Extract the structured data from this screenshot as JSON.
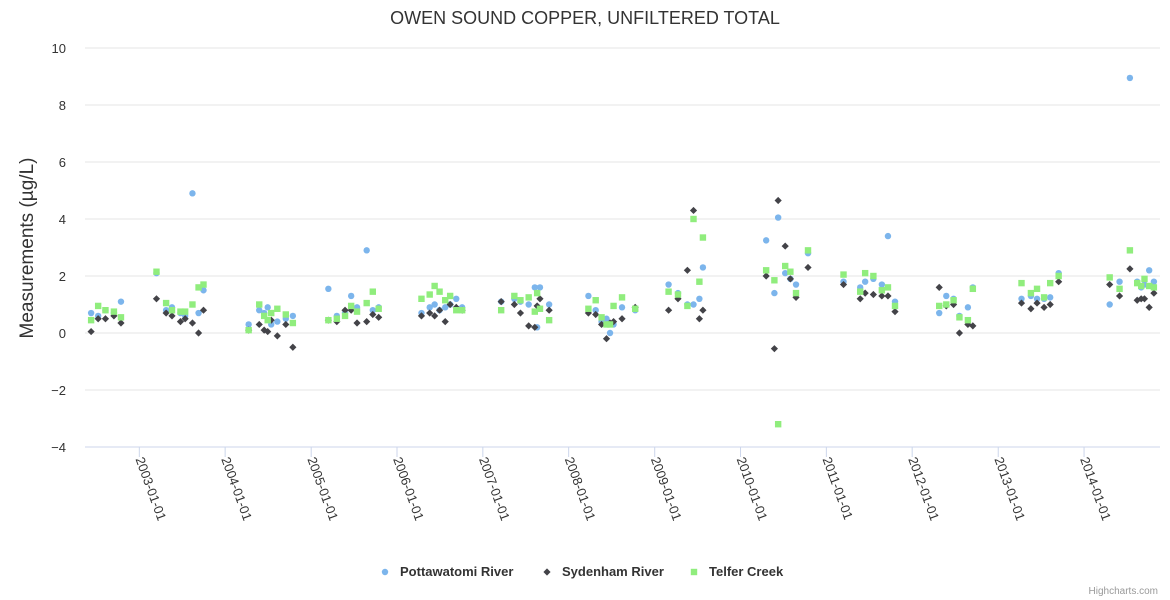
{
  "chart_data": {
    "type": "scatter",
    "title": "OWEN SOUND COPPER, UNFILTERED TOTAL",
    "ylabel": "Measurements (µg/L)",
    "xlabel": "",
    "ylim": [
      -4,
      10
    ],
    "yticks": [
      -4,
      -2,
      0,
      2,
      4,
      6,
      8,
      10
    ],
    "xlim": [
      "2002-05-15",
      "2014-11-20"
    ],
    "xticks": [
      "2003-01-01",
      "2004-01-01",
      "2005-01-01",
      "2006-01-01",
      "2007-01-01",
      "2008-01-01",
      "2009-01-01",
      "2010-01-01",
      "2011-01-01",
      "2012-01-01",
      "2013-01-01",
      "2014-01-01"
    ],
    "grid": true,
    "legend_position": "bottom-center",
    "credits": "Highcharts.com",
    "series": [
      {
        "name": "Pottawatomi River",
        "color": "#7cb5ec",
        "marker": "circle",
        "points": [
          [
            "2002-06-10",
            0.7
          ],
          [
            "2002-07-10",
            0.6
          ],
          [
            "2002-08-10",
            0.8
          ],
          [
            "2002-09-15",
            0.7
          ],
          [
            "2002-10-15",
            1.1
          ],
          [
            "2003-03-15",
            2.1
          ],
          [
            "2003-04-25",
            0.8
          ],
          [
            "2003-05-20",
            0.9
          ],
          [
            "2003-06-25",
            0.7
          ],
          [
            "2003-07-15",
            0.6
          ],
          [
            "2003-08-15",
            4.9
          ],
          [
            "2003-09-10",
            0.7
          ],
          [
            "2003-10-01",
            1.5
          ],
          [
            "2004-04-10",
            0.3
          ],
          [
            "2004-05-25",
            0.8
          ],
          [
            "2004-06-15",
            0.7
          ],
          [
            "2004-06-30",
            0.9
          ],
          [
            "2004-07-15",
            0.3
          ],
          [
            "2004-08-10",
            0.4
          ],
          [
            "2004-09-15",
            0.5
          ],
          [
            "2004-10-15",
            0.6
          ],
          [
            "2005-03-15",
            1.55
          ],
          [
            "2005-04-20",
            0.6
          ],
          [
            "2005-05-25",
            0.7
          ],
          [
            "2005-06-20",
            1.3
          ],
          [
            "2005-07-15",
            0.9
          ],
          [
            "2005-08-25",
            2.9
          ],
          [
            "2005-09-20",
            0.8
          ],
          [
            "2005-10-15",
            0.9
          ],
          [
            "2006-04-15",
            0.7
          ],
          [
            "2006-05-20",
            0.9
          ],
          [
            "2006-06-10",
            1.0
          ],
          [
            "2006-07-01",
            0.8
          ],
          [
            "2006-07-25",
            0.9
          ],
          [
            "2006-08-15",
            1.0
          ],
          [
            "2006-09-10",
            1.2
          ],
          [
            "2006-10-05",
            0.9
          ],
          [
            "2007-03-20",
            1.1
          ],
          [
            "2007-05-15",
            1.2
          ],
          [
            "2007-06-10",
            1.1
          ],
          [
            "2007-07-15",
            1.0
          ],
          [
            "2007-08-10",
            1.6
          ],
          [
            "2007-08-20",
            0.2
          ],
          [
            "2007-09-01",
            1.6
          ],
          [
            "2007-10-10",
            1.0
          ],
          [
            "2008-03-25",
            1.3
          ],
          [
            "2008-04-25",
            0.8
          ],
          [
            "2008-05-20",
            0.4
          ],
          [
            "2008-06-10",
            0.5
          ],
          [
            "2008-06-25",
            0.0
          ],
          [
            "2008-07-10",
            0.3
          ],
          [
            "2008-08-15",
            0.9
          ],
          [
            "2008-10-10",
            0.8
          ],
          [
            "2009-03-01",
            1.7
          ],
          [
            "2009-04-10",
            1.4
          ],
          [
            "2009-05-20",
            1.0
          ],
          [
            "2009-06-15",
            1.0
          ],
          [
            "2009-07-10",
            1.2
          ],
          [
            "2009-07-25",
            2.3
          ],
          [
            "2010-04-20",
            3.25
          ],
          [
            "2010-05-25",
            1.4
          ],
          [
            "2010-06-10",
            4.05
          ],
          [
            "2010-07-10",
            2.1
          ],
          [
            "2010-08-01",
            1.9
          ],
          [
            "2010-08-25",
            1.7
          ],
          [
            "2010-10-15",
            2.8
          ],
          [
            "2011-03-15",
            1.8
          ],
          [
            "2011-05-25",
            1.6
          ],
          [
            "2011-06-15",
            1.8
          ],
          [
            "2011-07-20",
            1.9
          ],
          [
            "2011-08-25",
            1.7
          ],
          [
            "2011-09-20",
            3.4
          ],
          [
            "2011-10-20",
            1.1
          ],
          [
            "2012-04-25",
            0.7
          ],
          [
            "2012-05-25",
            1.3
          ],
          [
            "2012-06-25",
            1.2
          ],
          [
            "2012-07-20",
            0.6
          ],
          [
            "2012-08-25",
            0.9
          ],
          [
            "2012-09-15",
            1.6
          ],
          [
            "2013-04-10",
            1.2
          ],
          [
            "2013-05-20",
            1.3
          ],
          [
            "2013-06-15",
            1.2
          ],
          [
            "2013-07-15",
            1.2
          ],
          [
            "2013-08-10",
            1.25
          ],
          [
            "2013-09-15",
            2.1
          ],
          [
            "2014-04-20",
            1.0
          ],
          [
            "2014-06-01",
            1.8
          ],
          [
            "2014-07-15",
            8.95
          ],
          [
            "2014-08-15",
            1.8
          ],
          [
            "2014-09-01",
            1.6
          ],
          [
            "2014-09-15",
            1.7
          ],
          [
            "2014-10-05",
            2.2
          ],
          [
            "2014-10-25",
            1.8
          ]
        ]
      },
      {
        "name": "Sydenham River",
        "color": "#434348",
        "marker": "diamond",
        "points": [
          [
            "2002-06-10",
            0.05
          ],
          [
            "2002-07-10",
            0.5
          ],
          [
            "2002-08-10",
            0.5
          ],
          [
            "2002-09-15",
            0.6
          ],
          [
            "2002-10-15",
            0.35
          ],
          [
            "2003-03-15",
            1.2
          ],
          [
            "2003-04-25",
            0.7
          ],
          [
            "2003-05-20",
            0.6
          ],
          [
            "2003-06-25",
            0.4
          ],
          [
            "2003-07-15",
            0.5
          ],
          [
            "2003-08-15",
            0.35
          ],
          [
            "2003-09-10",
            0.0
          ],
          [
            "2003-10-01",
            0.8
          ],
          [
            "2004-04-10",
            0.1
          ],
          [
            "2004-05-25",
            0.3
          ],
          [
            "2004-06-15",
            0.1
          ],
          [
            "2004-06-30",
            0.05
          ],
          [
            "2004-07-15",
            0.45
          ],
          [
            "2004-08-10",
            -0.1
          ],
          [
            "2004-09-15",
            0.3
          ],
          [
            "2004-10-15",
            -0.5
          ],
          [
            "2005-03-15",
            0.45
          ],
          [
            "2005-04-20",
            0.4
          ],
          [
            "2005-05-25",
            0.8
          ],
          [
            "2005-06-20",
            0.8
          ],
          [
            "2005-07-15",
            0.35
          ],
          [
            "2005-08-25",
            0.4
          ],
          [
            "2005-09-20",
            0.65
          ],
          [
            "2005-10-15",
            0.55
          ],
          [
            "2006-04-15",
            0.6
          ],
          [
            "2006-05-20",
            0.7
          ],
          [
            "2006-06-10",
            0.6
          ],
          [
            "2006-07-01",
            0.8
          ],
          [
            "2006-07-25",
            0.4
          ],
          [
            "2006-08-15",
            1.0
          ],
          [
            "2006-09-10",
            0.9
          ],
          [
            "2006-10-05",
            0.8
          ],
          [
            "2007-03-20",
            1.1
          ],
          [
            "2007-05-15",
            1.0
          ],
          [
            "2007-06-10",
            0.7
          ],
          [
            "2007-07-15",
            0.25
          ],
          [
            "2007-08-10",
            0.2
          ],
          [
            "2007-08-20",
            0.95
          ],
          [
            "2007-09-01",
            1.2
          ],
          [
            "2007-10-10",
            0.8
          ],
          [
            "2008-03-25",
            0.7
          ],
          [
            "2008-04-25",
            0.65
          ],
          [
            "2008-05-20",
            0.3
          ],
          [
            "2008-06-10",
            -0.2
          ],
          [
            "2008-06-25",
            0.35
          ],
          [
            "2008-07-10",
            0.4
          ],
          [
            "2008-08-15",
            0.5
          ],
          [
            "2008-10-10",
            0.9
          ],
          [
            "2009-03-01",
            0.8
          ],
          [
            "2009-04-10",
            1.2
          ],
          [
            "2009-05-20",
            2.2
          ],
          [
            "2009-06-15",
            4.3
          ],
          [
            "2009-07-10",
            0.5
          ],
          [
            "2009-07-25",
            0.8
          ],
          [
            "2010-04-20",
            2.0
          ],
          [
            "2010-05-25",
            -0.55
          ],
          [
            "2010-06-10",
            4.65
          ],
          [
            "2010-07-10",
            3.05
          ],
          [
            "2010-08-01",
            1.9
          ],
          [
            "2010-08-25",
            1.25
          ],
          [
            "2010-10-15",
            2.3
          ],
          [
            "2011-03-15",
            1.7
          ],
          [
            "2011-05-25",
            1.2
          ],
          [
            "2011-06-15",
            1.4
          ],
          [
            "2011-07-20",
            1.35
          ],
          [
            "2011-08-25",
            1.3
          ],
          [
            "2011-09-20",
            1.3
          ],
          [
            "2011-10-20",
            0.75
          ],
          [
            "2012-04-25",
            1.6
          ],
          [
            "2012-05-25",
            0.95
          ],
          [
            "2012-06-25",
            1.0
          ],
          [
            "2012-07-20",
            0.0
          ],
          [
            "2012-08-25",
            0.3
          ],
          [
            "2012-09-15",
            0.25
          ],
          [
            "2013-04-10",
            1.05
          ],
          [
            "2013-05-20",
            0.85
          ],
          [
            "2013-06-15",
            1.05
          ],
          [
            "2013-07-15",
            0.9
          ],
          [
            "2013-08-10",
            1.0
          ],
          [
            "2013-09-15",
            1.8
          ],
          [
            "2014-04-20",
            1.7
          ],
          [
            "2014-06-01",
            1.3
          ],
          [
            "2014-07-15",
            2.25
          ],
          [
            "2014-08-15",
            1.15
          ],
          [
            "2014-09-01",
            1.2
          ],
          [
            "2014-09-15",
            1.2
          ],
          [
            "2014-10-05",
            0.9
          ],
          [
            "2014-10-25",
            1.4
          ]
        ]
      },
      {
        "name": "Telfer Creek",
        "color": "#90ed7d",
        "marker": "square",
        "points": [
          [
            "2002-06-10",
            0.45
          ],
          [
            "2002-07-10",
            0.95
          ],
          [
            "2002-08-10",
            0.8
          ],
          [
            "2002-09-15",
            0.75
          ],
          [
            "2002-10-15",
            0.55
          ],
          [
            "2003-03-15",
            2.15
          ],
          [
            "2003-04-25",
            1.05
          ],
          [
            "2003-05-20",
            0.8
          ],
          [
            "2003-06-25",
            0.75
          ],
          [
            "2003-07-15",
            0.75
          ],
          [
            "2003-08-15",
            1.0
          ],
          [
            "2003-09-10",
            1.6
          ],
          [
            "2003-10-01",
            1.7
          ],
          [
            "2004-04-10",
            0.1
          ],
          [
            "2004-05-25",
            1.0
          ],
          [
            "2004-06-15",
            0.6
          ],
          [
            "2004-06-30",
            0.45
          ],
          [
            "2004-07-15",
            0.7
          ],
          [
            "2004-08-10",
            0.85
          ],
          [
            "2004-09-15",
            0.65
          ],
          [
            "2004-10-15",
            0.35
          ],
          [
            "2005-03-15",
            0.45
          ],
          [
            "2005-04-20",
            0.5
          ],
          [
            "2005-05-25",
            0.6
          ],
          [
            "2005-06-20",
            0.95
          ],
          [
            "2005-07-15",
            0.75
          ],
          [
            "2005-08-25",
            1.05
          ],
          [
            "2005-09-20",
            1.45
          ],
          [
            "2005-10-15",
            0.85
          ],
          [
            "2006-04-15",
            1.2
          ],
          [
            "2006-05-20",
            1.35
          ],
          [
            "2006-06-10",
            1.65
          ],
          [
            "2006-07-01",
            1.45
          ],
          [
            "2006-07-25",
            1.15
          ],
          [
            "2006-08-15",
            1.3
          ],
          [
            "2006-09-10",
            0.8
          ],
          [
            "2006-10-05",
            0.8
          ],
          [
            "2007-03-20",
            0.8
          ],
          [
            "2007-05-15",
            1.3
          ],
          [
            "2007-06-10",
            1.15
          ],
          [
            "2007-07-15",
            1.25
          ],
          [
            "2007-08-10",
            0.75
          ],
          [
            "2007-08-20",
            1.4
          ],
          [
            "2007-09-01",
            0.85
          ],
          [
            "2007-10-10",
            0.45
          ],
          [
            "2008-03-25",
            0.85
          ],
          [
            "2008-04-25",
            1.15
          ],
          [
            "2008-05-20",
            0.55
          ],
          [
            "2008-06-10",
            0.3
          ],
          [
            "2008-06-25",
            0.3
          ],
          [
            "2008-07-10",
            0.95
          ],
          [
            "2008-08-15",
            1.25
          ],
          [
            "2008-10-10",
            0.85
          ],
          [
            "2009-03-01",
            1.45
          ],
          [
            "2009-04-10",
            1.35
          ],
          [
            "2009-05-20",
            0.95
          ],
          [
            "2009-06-15",
            4.0
          ],
          [
            "2009-07-10",
            1.8
          ],
          [
            "2009-07-25",
            3.35
          ],
          [
            "2010-04-20",
            2.2
          ],
          [
            "2010-05-25",
            1.85
          ],
          [
            "2010-06-10",
            -3.2
          ],
          [
            "2010-07-10",
            2.35
          ],
          [
            "2010-08-01",
            2.15
          ],
          [
            "2010-08-25",
            1.4
          ],
          [
            "2010-10-15",
            2.9
          ],
          [
            "2011-03-15",
            2.05
          ],
          [
            "2011-05-25",
            1.45
          ],
          [
            "2011-06-15",
            2.1
          ],
          [
            "2011-07-20",
            2.0
          ],
          [
            "2011-08-25",
            1.5
          ],
          [
            "2011-09-20",
            1.6
          ],
          [
            "2011-10-20",
            0.95
          ],
          [
            "2012-04-25",
            0.95
          ],
          [
            "2012-05-25",
            1.0
          ],
          [
            "2012-06-25",
            1.15
          ],
          [
            "2012-07-20",
            0.55
          ],
          [
            "2012-08-25",
            0.45
          ],
          [
            "2012-09-15",
            1.55
          ],
          [
            "2013-04-10",
            1.75
          ],
          [
            "2013-05-20",
            1.4
          ],
          [
            "2013-06-15",
            1.55
          ],
          [
            "2013-07-15",
            1.25
          ],
          [
            "2013-08-10",
            1.75
          ],
          [
            "2013-09-15",
            2.0
          ],
          [
            "2014-04-20",
            1.95
          ],
          [
            "2014-06-01",
            1.55
          ],
          [
            "2014-07-15",
            2.9
          ],
          [
            "2014-08-15",
            1.75
          ],
          [
            "2014-09-01",
            1.65
          ],
          [
            "2014-09-15",
            1.9
          ],
          [
            "2014-10-05",
            1.65
          ],
          [
            "2014-10-25",
            1.6
          ]
        ]
      }
    ]
  }
}
